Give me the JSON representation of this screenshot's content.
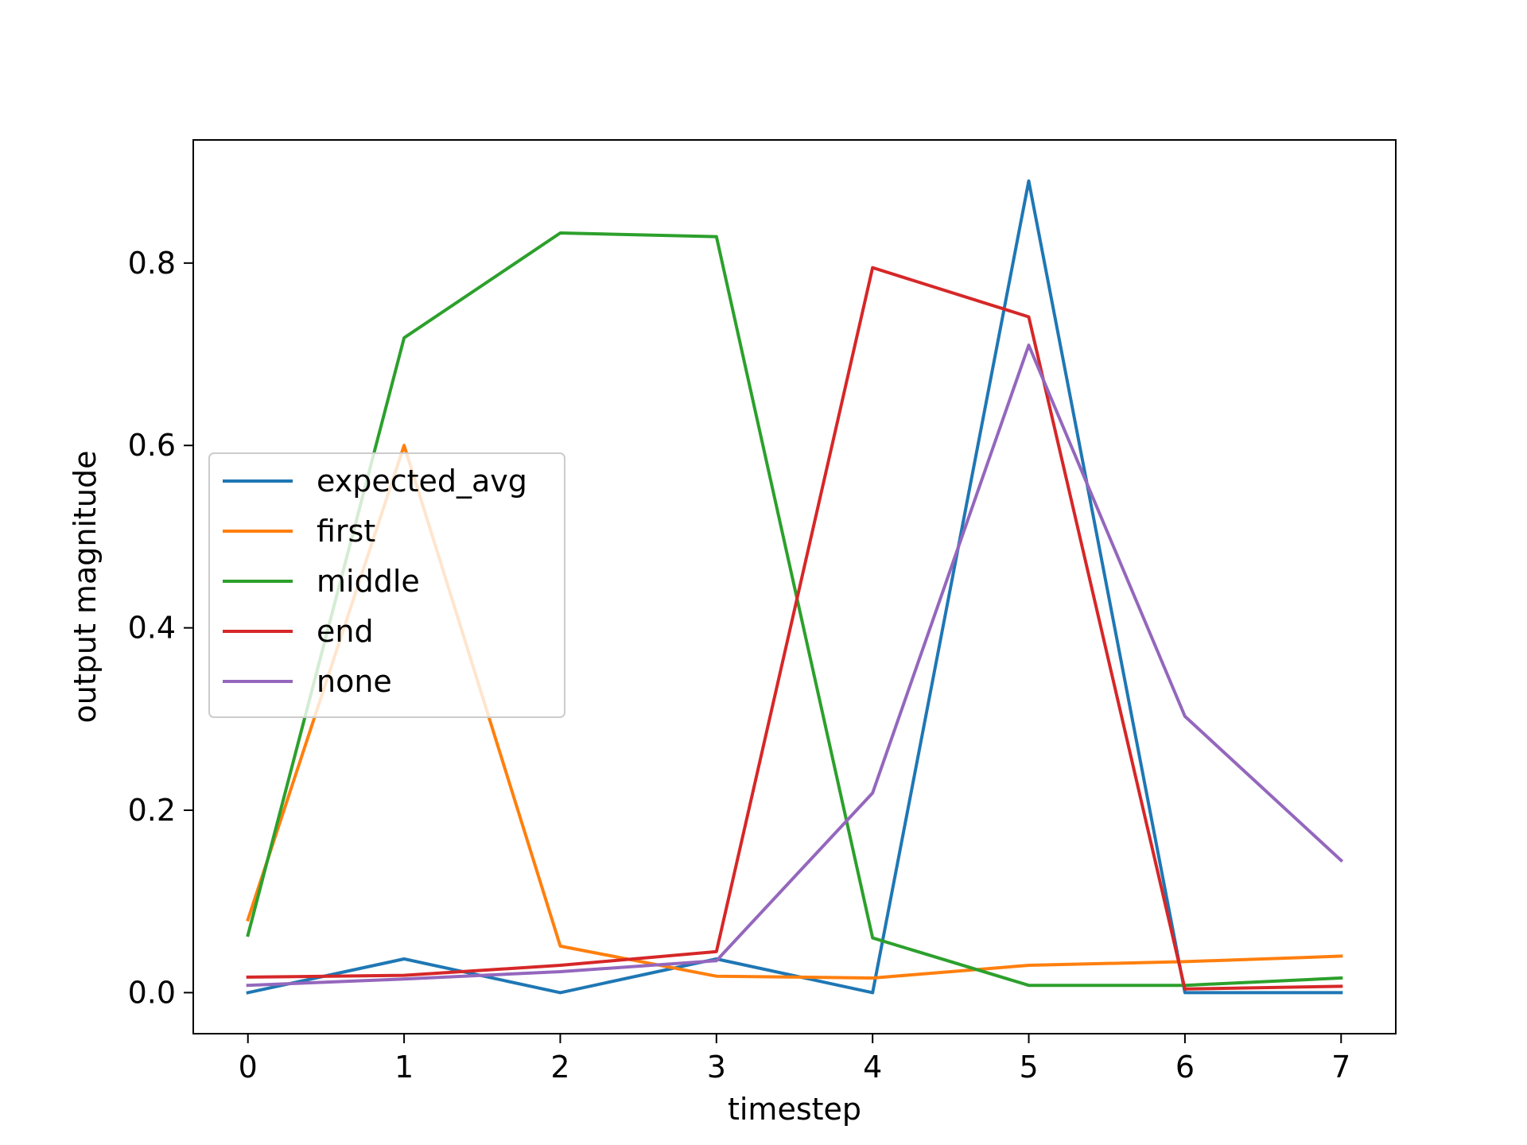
{
  "chart_data": {
    "type": "line",
    "title": "",
    "xlabel": "timestep",
    "ylabel": "output magnitude",
    "x": [
      0,
      1,
      2,
      3,
      4,
      5,
      6,
      7
    ],
    "xlim": [
      -0.35,
      7.35
    ],
    "ylim": [
      -0.045,
      0.935
    ],
    "xticks": [
      "0",
      "1",
      "2",
      "3",
      "4",
      "5",
      "6",
      "7"
    ],
    "yticks": [
      "0.0",
      "0.2",
      "0.4",
      "0.6",
      "0.8"
    ],
    "grid": false,
    "legend_position": "center-left",
    "series": [
      {
        "name": "expected_avg",
        "color": "#1f77b4",
        "values": [
          0.0,
          0.037,
          0.0,
          0.037,
          0.0,
          0.89,
          0.0,
          0.0
        ]
      },
      {
        "name": "first",
        "color": "#ff7f0e",
        "values": [
          0.08,
          0.6,
          0.051,
          0.018,
          0.016,
          0.03,
          0.034,
          0.04
        ]
      },
      {
        "name": "middle",
        "color": "#2ca02c",
        "values": [
          0.063,
          0.718,
          0.833,
          0.829,
          0.06,
          0.008,
          0.008,
          0.016
        ]
      },
      {
        "name": "end",
        "color": "#d62728",
        "values": [
          0.017,
          0.019,
          0.03,
          0.045,
          0.795,
          0.741,
          0.004,
          0.007
        ]
      },
      {
        "name": "none",
        "color": "#9467bd",
        "values": [
          0.008,
          0.015,
          0.023,
          0.035,
          0.219,
          0.71,
          0.303,
          0.145
        ]
      }
    ]
  }
}
